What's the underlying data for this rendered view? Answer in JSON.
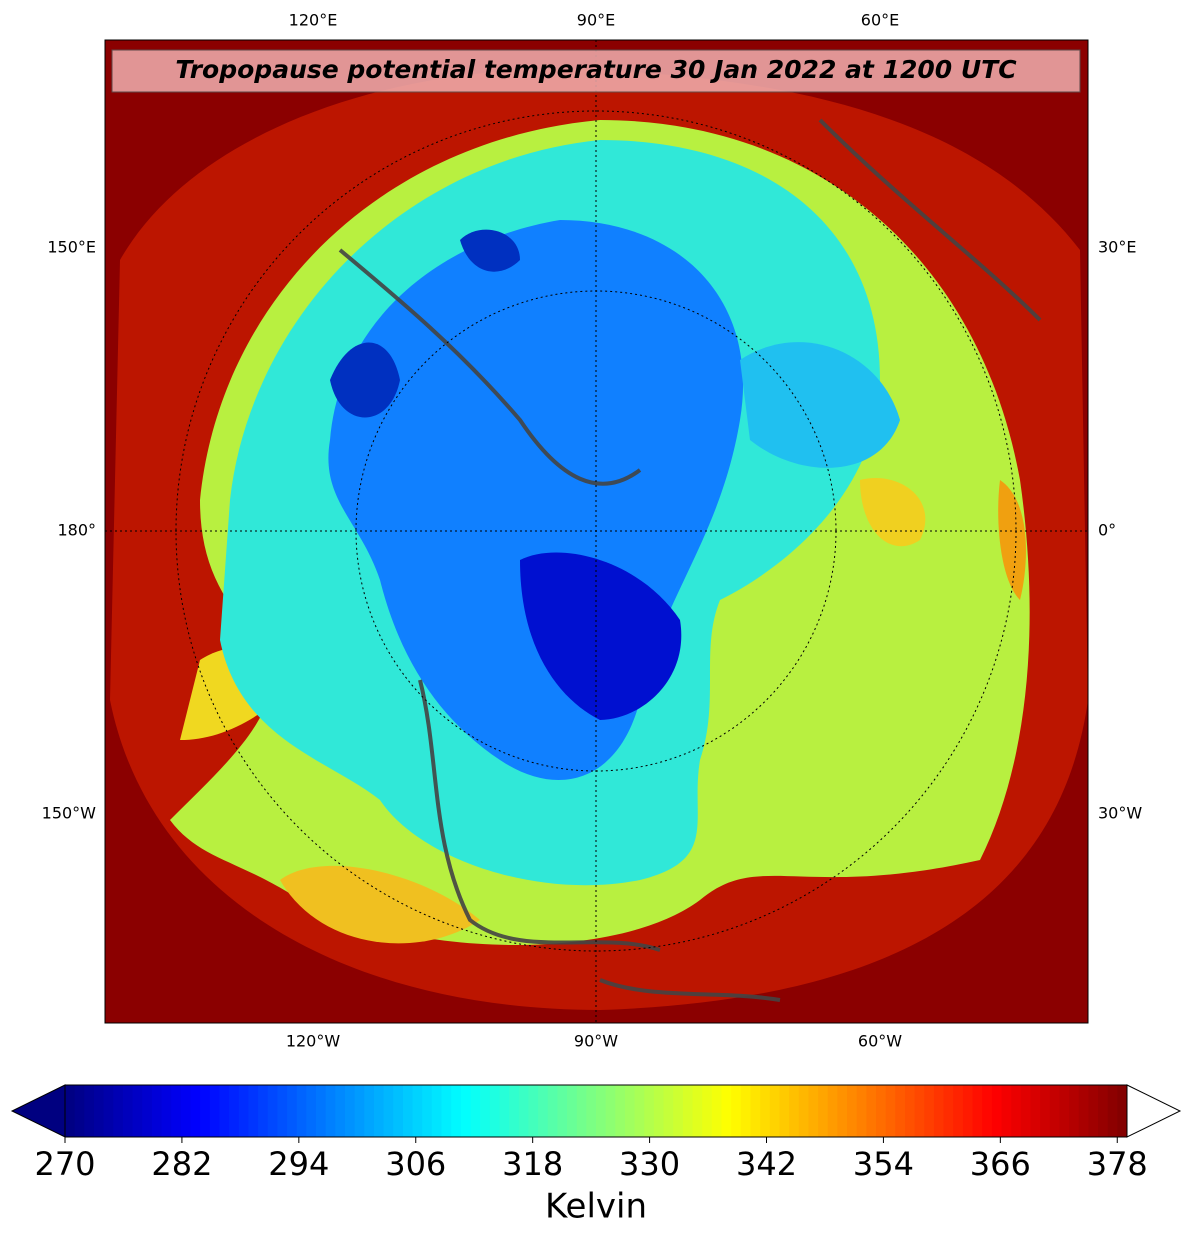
{
  "map": {
    "title": "Tropopause potential temperature 30 Jan 2022 at 1200 UTC",
    "labels_top": [
      "120°E",
      "90°E",
      "60°E"
    ],
    "labels_left": [
      "150°E",
      "180°",
      "150°W"
    ],
    "labels_right": [
      "30°E",
      "0°",
      "30°W"
    ],
    "labels_bottom": [
      "120°W",
      "90°W",
      "60°W"
    ]
  },
  "colorbar": {
    "label": "Kelvin",
    "lim": [
      270,
      379
    ],
    "ticks": [
      270,
      282,
      294,
      306,
      318,
      330,
      342,
      354,
      366,
      378
    ]
  }
}
